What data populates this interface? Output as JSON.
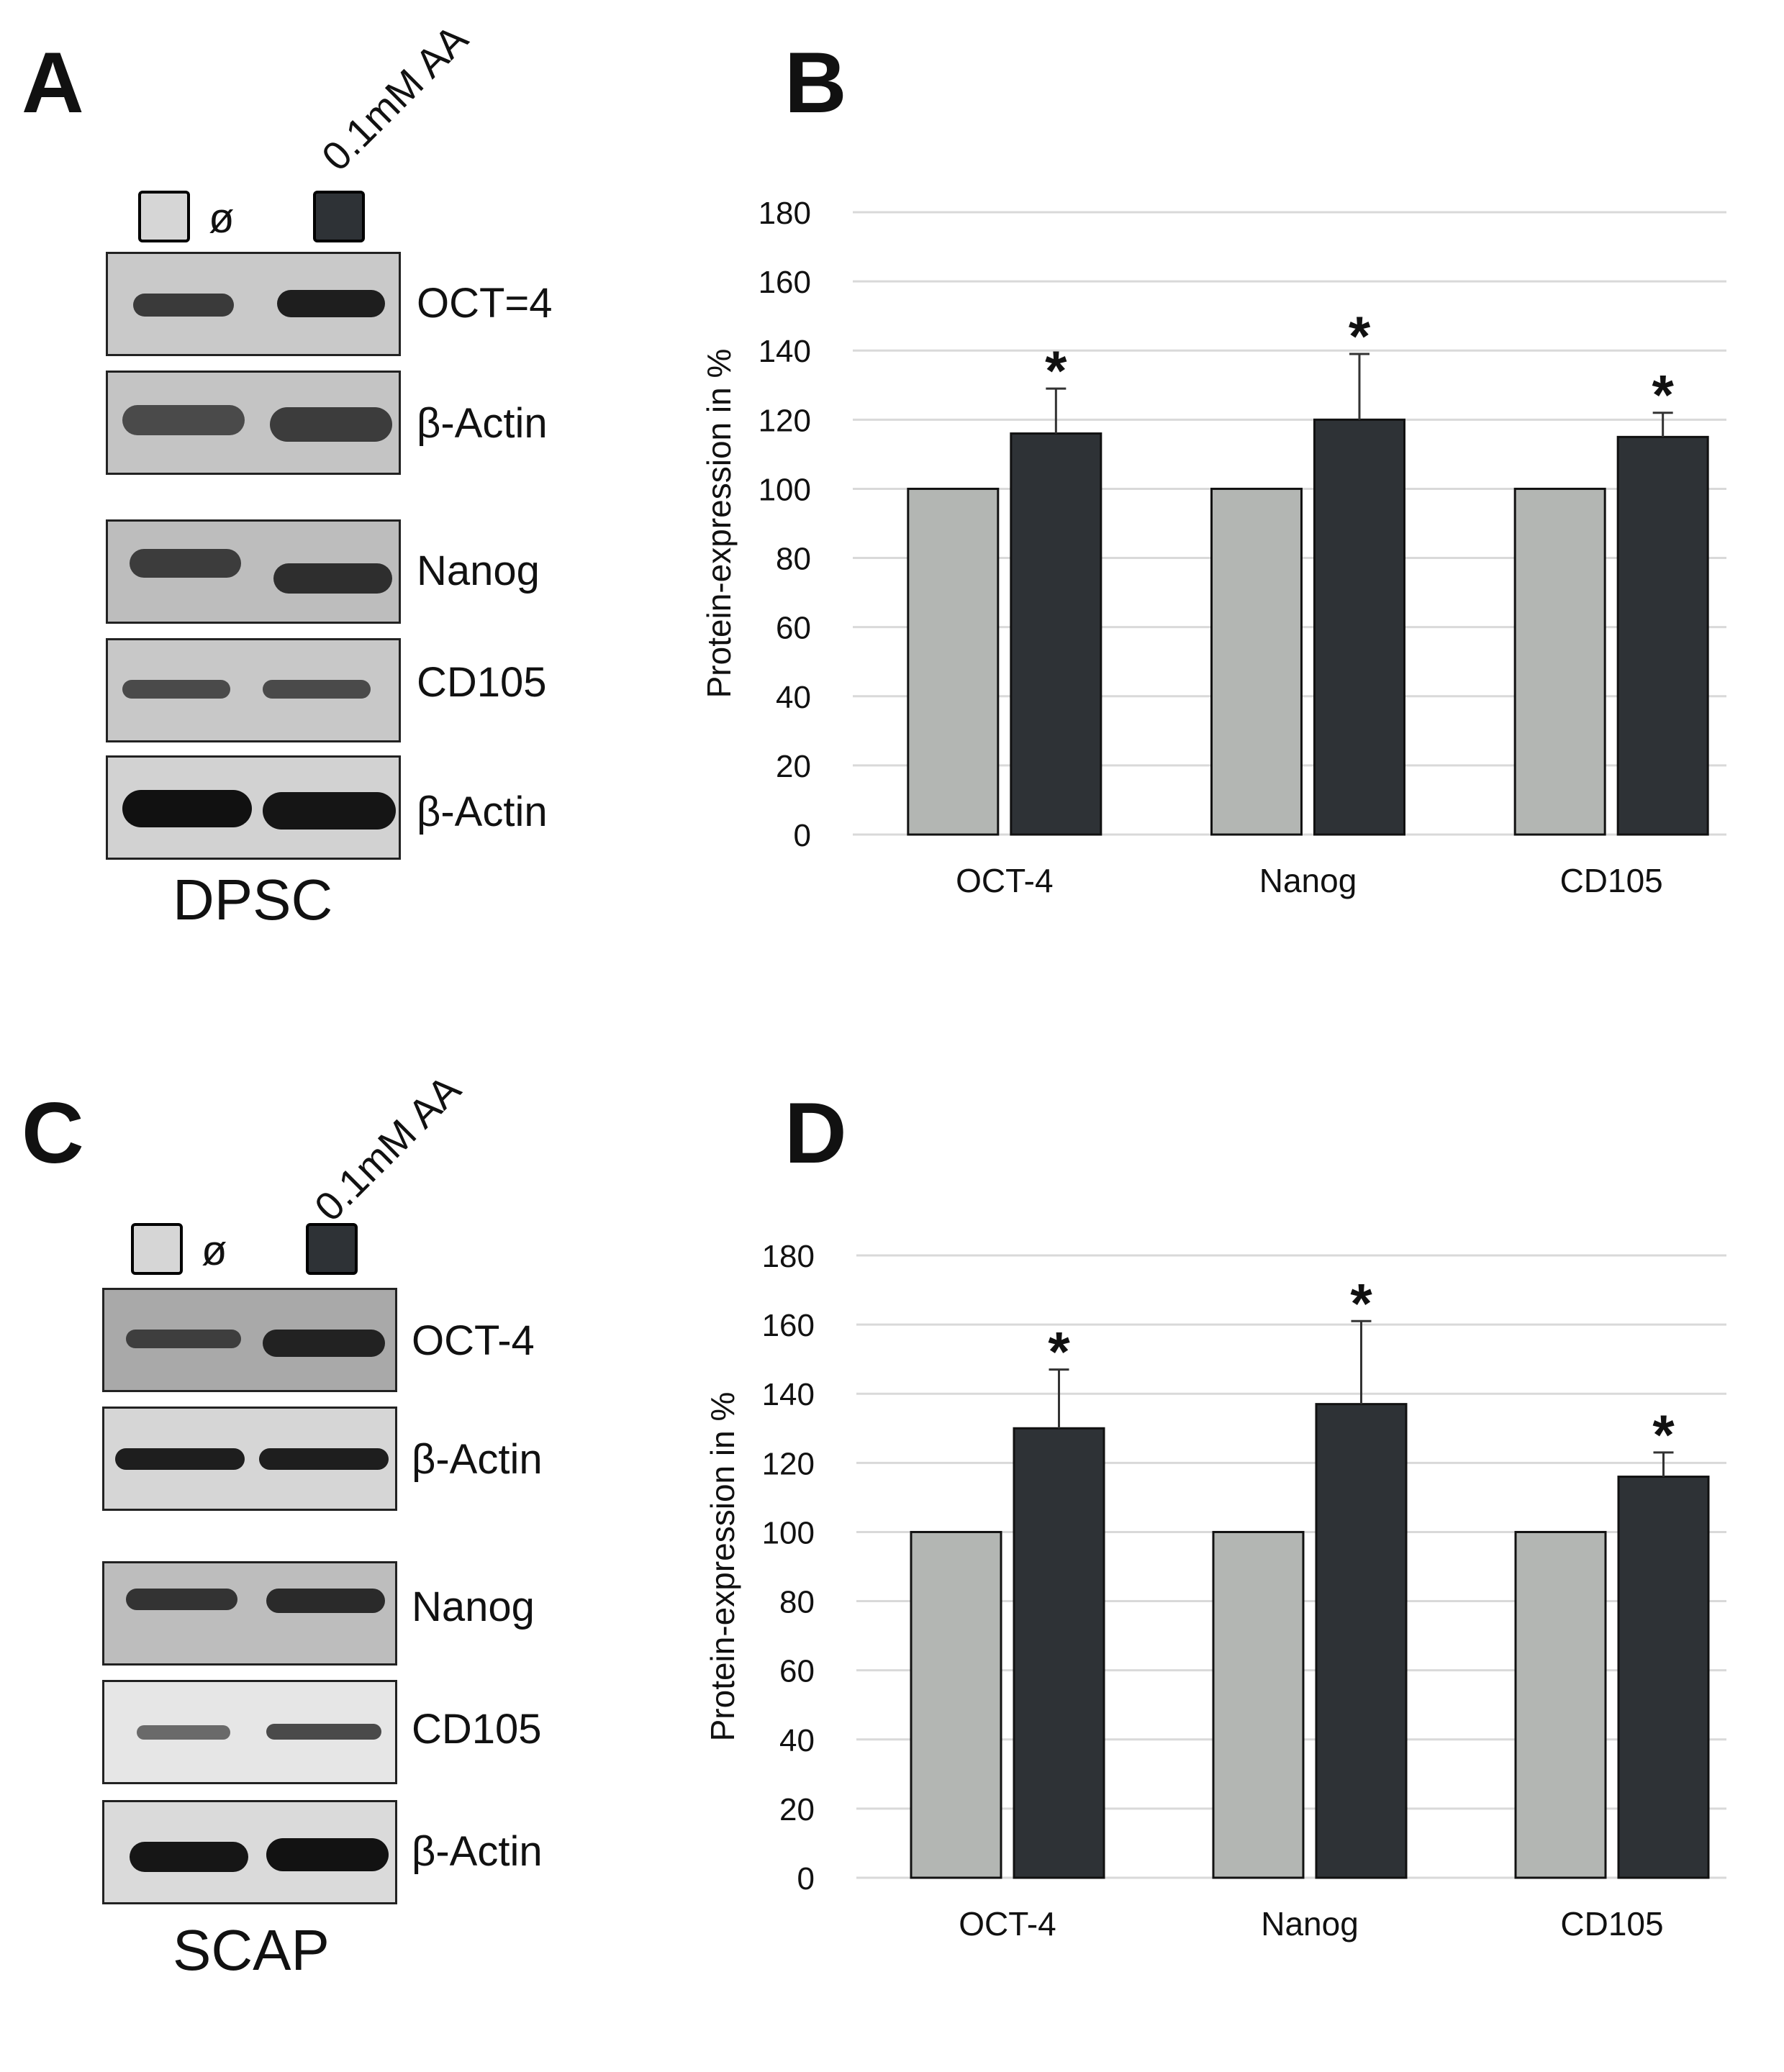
{
  "panels": {
    "A": {
      "letter": "A",
      "treatment_label": "0.1mM AA",
      "control_symbol": "ø",
      "cell_type": "DPSC",
      "blots": [
        {
          "label": "OCT=4"
        },
        {
          "label": "β-Actin"
        },
        {
          "label": "Nanog"
        },
        {
          "label": "CD105"
        },
        {
          "label": "β-Actin"
        }
      ]
    },
    "B": {
      "letter": "B"
    },
    "C": {
      "letter": "C",
      "treatment_label": "0.1mM AA",
      "control_symbol": "ø",
      "cell_type": "SCAP",
      "blots": [
        {
          "label": "OCT-4"
        },
        {
          "label": "β-Actin"
        },
        {
          "label": "Nanog"
        },
        {
          "label": "CD105"
        },
        {
          "label": "β-Actin"
        }
      ]
    },
    "D": {
      "letter": "D"
    }
  },
  "colors": {
    "control": "#b3b6b3",
    "treatment": "#2e3236",
    "grid": "#d9d9d9"
  },
  "chart_data": [
    {
      "panel": "B",
      "type": "bar",
      "categories": [
        "OCT-4",
        "Nanog",
        "CD105"
      ],
      "series": [
        {
          "name": "ø",
          "values": [
            100,
            100,
            100
          ]
        },
        {
          "name": "0.1mM AA",
          "values": [
            116,
            120,
            115
          ],
          "errors": [
            13,
            19,
            7
          ],
          "significance": [
            "*",
            "*",
            "*"
          ]
        }
      ],
      "ylabel": "Protein-expression in %",
      "ylim": [
        0,
        180
      ],
      "yticks": [
        0,
        20,
        40,
        60,
        80,
        100,
        120,
        140,
        160,
        180
      ]
    },
    {
      "panel": "D",
      "type": "bar",
      "categories": [
        "OCT-4",
        "Nanog",
        "CD105"
      ],
      "series": [
        {
          "name": "ø",
          "values": [
            100,
            100,
            100
          ]
        },
        {
          "name": "0.1mM AA",
          "values": [
            130,
            137,
            116
          ],
          "errors": [
            17,
            24,
            7
          ],
          "significance": [
            "*",
            "*",
            "*"
          ]
        }
      ],
      "ylabel": "Protein-expression in %",
      "ylim": [
        0,
        180
      ],
      "yticks": [
        0,
        20,
        40,
        60,
        80,
        100,
        120,
        140,
        160,
        180
      ]
    }
  ]
}
